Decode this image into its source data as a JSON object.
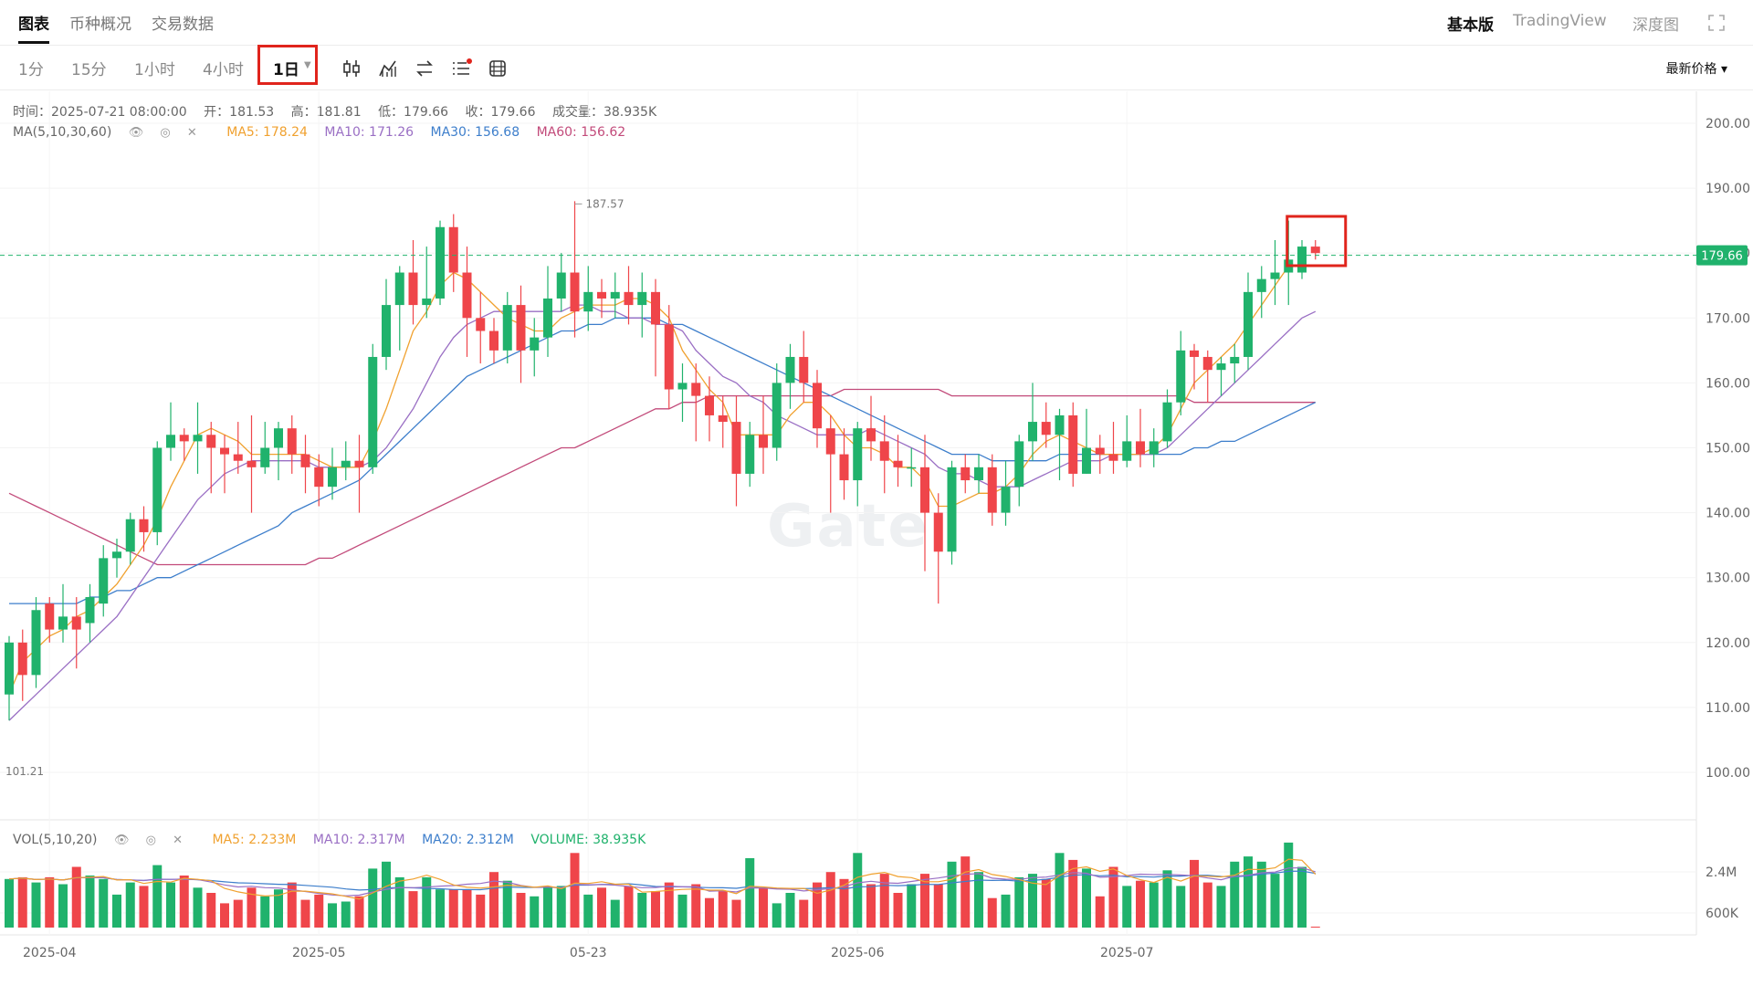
{
  "tabs": [
    "图表",
    "币种概况",
    "交易数据"
  ],
  "views": [
    "基本版",
    "TradingView",
    "深度图"
  ],
  "intervals": [
    "1分",
    "15分",
    "1小时",
    "4小时",
    "1日"
  ],
  "selected_interval": "1日",
  "price_select": "最新价格",
  "info": {
    "time": "时间：2025-07-21 08:00:00",
    "open": "开：181.53",
    "high": "高：181.81",
    "low": "低：179.66",
    "close": "收：179.66",
    "volume": "成交量：38.935K"
  },
  "ma_legend": {
    "label": "MA(5,10,30,60)",
    "ma5": "MA5: 178.24",
    "ma10": "MA10: 171.26",
    "ma30": "MA30: 156.68",
    "ma60": "MA60: 156.62"
  },
  "vol_legend": {
    "label": "VOL(5,10,20)",
    "ma5": "MA5: 2.233M",
    "ma10": "MA10: 2.317M",
    "ma20": "MA20: 2.312M",
    "volume": "VOLUME: 38.935K"
  },
  "watermark": "Gate",
  "colors": {
    "up": "#20b26c",
    "down": "#ef454a",
    "ma5": "#f0a12f",
    "ma10": "#9a6fc4",
    "ma30": "#3d7ecb",
    "ma60": "#c24a7a",
    "accent": "#e0241c"
  },
  "chart_data": {
    "type": "candlestick",
    "price_axis_ticks": [
      "200.00",
      "190.00",
      "180.00",
      "170.00",
      "160.00",
      "150.00",
      "140.00",
      "130.00",
      "120.00",
      "110.00",
      "100.00"
    ],
    "volume_axis_ticks": [
      "2.4M",
      "600K"
    ],
    "x_tick_labels": [
      "2025-04",
      "2025-05",
      "05-23",
      "2025-06",
      "2025-07"
    ],
    "current_price": "179.66",
    "high_annotation": "187.57",
    "low_annotation": "101.21",
    "ylim": [
      100,
      200
    ],
    "candles": [
      [
        112,
        120,
        108,
        121
      ],
      [
        120,
        115,
        111,
        122
      ],
      [
        115,
        125,
        113,
        127
      ],
      [
        126,
        122,
        120,
        127
      ],
      [
        122,
        124,
        120,
        129
      ],
      [
        124,
        122,
        116,
        127
      ],
      [
        123,
        127,
        120,
        129
      ],
      [
        126,
        133,
        124,
        135
      ],
      [
        133,
        134,
        130,
        136
      ],
      [
        134,
        139,
        132,
        140
      ],
      [
        139,
        137,
        134,
        141
      ],
      [
        137,
        150,
        135,
        151
      ],
      [
        150,
        152,
        148,
        157
      ],
      [
        152,
        151,
        148,
        153
      ],
      [
        151,
        152,
        146,
        157
      ],
      [
        152,
        150,
        143,
        154
      ],
      [
        150,
        149,
        143,
        152
      ],
      [
        149,
        148,
        146,
        154
      ],
      [
        148,
        147,
        140,
        155
      ],
      [
        147,
        150,
        146,
        154
      ],
      [
        150,
        153,
        145,
        154
      ],
      [
        153,
        149,
        146,
        155
      ],
      [
        149,
        147,
        143,
        152
      ],
      [
        147,
        144,
        141,
        149
      ],
      [
        144,
        147,
        142,
        150
      ],
      [
        147,
        148,
        145,
        151
      ],
      [
        148,
        147,
        140,
        152
      ],
      [
        147,
        164,
        146,
        166
      ],
      [
        164,
        172,
        162,
        176
      ],
      [
        172,
        177,
        165,
        178
      ],
      [
        177,
        172,
        169,
        182
      ],
      [
        172,
        173,
        170,
        181
      ],
      [
        173,
        184,
        172,
        185
      ],
      [
        184,
        177,
        174,
        186
      ],
      [
        177,
        170,
        164,
        181
      ],
      [
        170,
        168,
        163,
        174
      ],
      [
        168,
        165,
        163,
        170
      ],
      [
        165,
        172,
        163,
        174
      ],
      [
        172,
        165,
        160,
        175
      ],
      [
        165,
        167,
        161,
        170
      ],
      [
        167,
        173,
        164,
        178
      ],
      [
        173,
        177,
        171,
        180
      ],
      [
        177,
        171,
        167,
        188
      ],
      [
        171,
        174,
        168,
        178
      ],
      [
        174,
        173,
        170,
        176
      ],
      [
        173,
        174,
        170,
        177
      ],
      [
        174,
        172,
        169,
        178
      ],
      [
        172,
        174,
        167,
        177
      ],
      [
        174,
        169,
        161,
        176
      ],
      [
        169,
        159,
        156,
        172
      ],
      [
        159,
        160,
        154,
        163
      ],
      [
        160,
        158,
        151,
        163
      ],
      [
        158,
        155,
        151,
        161
      ],
      [
        155,
        154,
        150,
        158
      ],
      [
        154,
        146,
        141,
        158
      ],
      [
        146,
        152,
        144,
        154
      ],
      [
        152,
        150,
        146,
        158
      ],
      [
        150,
        160,
        148,
        163
      ],
      [
        160,
        164,
        156,
        166
      ],
      [
        164,
        160,
        157,
        168
      ],
      [
        160,
        153,
        150,
        162
      ],
      [
        153,
        149,
        140,
        155
      ],
      [
        149,
        145,
        142,
        153
      ],
      [
        145,
        153,
        141,
        154
      ],
      [
        153,
        151,
        148,
        158
      ],
      [
        151,
        148,
        143,
        155
      ],
      [
        148,
        147,
        144,
        152
      ],
      [
        147,
        147,
        144,
        150
      ],
      [
        147,
        140,
        131,
        152
      ],
      [
        140,
        134,
        126,
        143
      ],
      [
        134,
        147,
        132,
        148
      ],
      [
        147,
        145,
        143,
        149
      ],
      [
        145,
        147,
        143,
        149
      ],
      [
        147,
        140,
        138,
        149
      ],
      [
        140,
        144,
        138,
        148
      ],
      [
        144,
        151,
        141,
        152
      ],
      [
        151,
        154,
        148,
        160
      ],
      [
        154,
        152,
        150,
        157
      ],
      [
        152,
        155,
        145,
        156
      ],
      [
        155,
        146,
        144,
        157
      ],
      [
        146,
        150,
        146,
        156
      ],
      [
        150,
        149,
        146,
        152
      ],
      [
        149,
        148,
        146,
        154
      ],
      [
        148,
        151,
        147,
        155
      ],
      [
        151,
        149,
        147,
        156
      ],
      [
        149,
        151,
        147,
        153
      ],
      [
        151,
        157,
        150,
        159
      ],
      [
        157,
        165,
        155,
        168
      ],
      [
        165,
        164,
        159,
        166
      ],
      [
        164,
        162,
        157,
        165
      ],
      [
        162,
        163,
        158,
        164
      ],
      [
        163,
        164,
        160,
        166
      ],
      [
        164,
        174,
        162,
        177
      ],
      [
        174,
        176,
        170,
        178
      ],
      [
        176,
        177,
        172,
        182
      ],
      [
        177,
        179,
        172,
        185
      ],
      [
        177,
        181,
        176,
        182
      ],
      [
        181,
        180,
        179,
        182
      ]
    ],
    "volumes": [
      2.8,
      2.9,
      2.6,
      2.9,
      2.5,
      3.5,
      3.0,
      2.8,
      1.9,
      2.6,
      2.4,
      3.6,
      2.6,
      3.0,
      2.3,
      2.0,
      1.4,
      1.6,
      2.3,
      1.8,
      2.2,
      2.6,
      1.6,
      1.9,
      1.4,
      1.5,
      1.8,
      3.4,
      3.8,
      2.9,
      2.1,
      2.9,
      2.2,
      2.2,
      2.2,
      1.9,
      3.2,
      2.7,
      2.0,
      1.8,
      2.3,
      2.4,
      4.3,
      1.9,
      2.3,
      1.6,
      2.4,
      2.0,
      2.1,
      2.6,
      1.9,
      2.5,
      1.7,
      2.1,
      1.6,
      4.0,
      2.3,
      1.4,
      2.0,
      1.6,
      2.6,
      3.2,
      2.8,
      4.3,
      2.5,
      3.1,
      2.0,
      2.5,
      3.1,
      2.5,
      3.8,
      4.1,
      3.2,
      1.7,
      1.9,
      2.9,
      3.1,
      2.8,
      4.3,
      3.9,
      3.4,
      1.8,
      3.5,
      2.4,
      2.7,
      2.6,
      3.3,
      2.4,
      3.9,
      2.6,
      2.4,
      3.8,
      4.1,
      3.8,
      3.1,
      4.9,
      3.5,
      0.04
    ],
    "ma5_line": [
      112,
      117,
      119,
      121,
      122,
      124,
      125,
      127,
      129,
      132,
      135,
      139,
      144,
      148,
      152,
      153,
      152,
      151,
      149,
      149,
      149,
      149,
      149,
      148,
      147,
      147,
      147,
      151,
      156,
      162,
      168,
      171,
      175,
      177,
      176,
      174,
      172,
      170,
      169,
      168,
      168,
      170,
      171,
      172,
      172,
      172,
      173,
      173,
      172,
      170,
      165,
      162,
      159,
      157,
      152,
      152,
      152,
      152,
      155,
      157,
      157,
      155,
      152,
      150,
      150,
      149,
      147,
      147,
      145,
      141,
      141,
      142,
      143,
      143,
      144,
      146,
      149,
      151,
      152,
      151,
      150,
      149,
      149,
      149,
      149,
      150,
      152,
      156,
      160,
      162,
      164,
      166,
      169,
      172,
      175,
      178,
      178,
      178
    ],
    "ma10_line": [
      108,
      110,
      112,
      114,
      116,
      118,
      120,
      122,
      124,
      127,
      130,
      133,
      136,
      139,
      142,
      144,
      146,
      147,
      148,
      148,
      148,
      148,
      148,
      147,
      147,
      147,
      147,
      148,
      150,
      153,
      156,
      160,
      164,
      167,
      169,
      170,
      171,
      171,
      171,
      171,
      171,
      171,
      172,
      172,
      171,
      171,
      170,
      170,
      169,
      169,
      168,
      165,
      163,
      161,
      160,
      158,
      157,
      155,
      154,
      153,
      152,
      152,
      152,
      152,
      153,
      152,
      151,
      150,
      149,
      147,
      146,
      146,
      145,
      144,
      144,
      144,
      145,
      146,
      147,
      148,
      148,
      148,
      149,
      149,
      149,
      149,
      150,
      152,
      154,
      156,
      158,
      160,
      162,
      164,
      166,
      168,
      170,
      171
    ],
    "ma30_line": [
      126,
      126,
      126,
      126,
      126,
      126,
      127,
      127,
      128,
      128,
      129,
      130,
      130,
      131,
      132,
      133,
      134,
      135,
      136,
      137,
      138,
      140,
      141,
      142,
      143,
      144,
      145,
      147,
      149,
      151,
      153,
      155,
      157,
      159,
      161,
      162,
      163,
      164,
      165,
      166,
      167,
      168,
      168,
      169,
      169,
      170,
      170,
      170,
      170,
      169,
      169,
      168,
      167,
      166,
      165,
      164,
      163,
      162,
      161,
      160,
      159,
      158,
      157,
      156,
      155,
      154,
      153,
      152,
      151,
      150,
      149,
      149,
      149,
      148,
      148,
      148,
      148,
      148,
      149,
      149,
      149,
      149,
      149,
      149,
      149,
      149,
      149,
      149,
      150,
      150,
      151,
      151,
      152,
      153,
      154,
      155,
      156,
      157
    ],
    "ma60_line": [
      143,
      142,
      141,
      140,
      139,
      138,
      137,
      136,
      135,
      134,
      133,
      132,
      132,
      132,
      132,
      132,
      132,
      132,
      132,
      132,
      132,
      132,
      132,
      133,
      133,
      134,
      135,
      136,
      137,
      138,
      139,
      140,
      141,
      142,
      143,
      144,
      145,
      146,
      147,
      148,
      149,
      150,
      150,
      151,
      152,
      153,
      154,
      155,
      156,
      156,
      157,
      157,
      158,
      158,
      158,
      158,
      158,
      158,
      158,
      158,
      158,
      158,
      159,
      159,
      159,
      159,
      159,
      159,
      159,
      159,
      158,
      158,
      158,
      158,
      158,
      158,
      158,
      158,
      158,
      158,
      158,
      158,
      158,
      158,
      158,
      158,
      158,
      158,
      157,
      157,
      157,
      157,
      157,
      157,
      157,
      157,
      157,
      157
    ]
  }
}
